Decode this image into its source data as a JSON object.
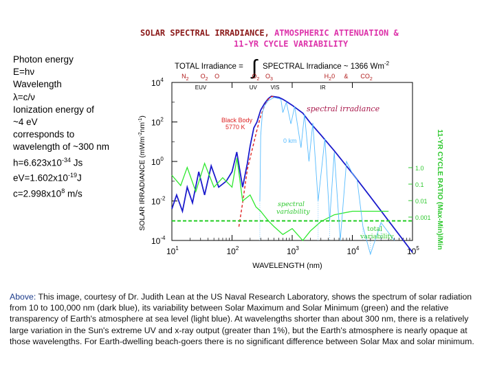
{
  "notes": {
    "photon_energy": "Photon energy",
    "energy_eq": "E=hν",
    "wavelength": "Wavelength",
    "lambda_eq": "λ=c/ν",
    "ionization_1": "Ionization energy of",
    "ionization_2": "~4 eV",
    "corresponds_1": "corresponds to",
    "corresponds_2": "wavelength of ~300 nm",
    "h_const": "h=6.623x10",
    "h_exp": "-34",
    "h_unit": " Js",
    "ev_const": "eV=1.602x10",
    "ev_exp": "-19",
    "ev_unit": "J",
    "c_const": "c=2.998x10",
    "c_exp": "8",
    "c_unit": " m/s"
  },
  "caption": {
    "lead": "Above:",
    "text": " This image, courtesy of Dr. Judith Lean at the US Naval Research Laboratory, shows the spectrum of solar radiation from 10 to 100,000 nm (dark blue), its variability between Solar Maximum and Solar Minimum (green) and the relative transparency of Earth's atmosphere at sea level (light blue). At wavelengths shorter than about 300 nm, there is a relatively large variation in the Sun's extreme UV and x-ray output (greater than 1%), but the Earth's atmosphere is nearly opaque at those wavelengths. For Earth-dwelling beach-goers there is no significant difference between Solar Max and solar minimum."
  },
  "chart_data": {
    "type": "line",
    "title_part1": "SOLAR SPECTRAL IRRADIANCE, ",
    "title_part2": "ATMOSPHERIC ATTENUATION &",
    "title_line2": "11-YR CYCLE VARIABILITY",
    "formula_left": "TOTAL Irradiance =",
    "integral": "∫",
    "formula_right": "SPECTRAL Irradiance ~ 1366 Wm",
    "formula_exp": "-2",
    "xlabel": "WAVELENGTH (nm)",
    "ylabel": "SOLAR IRRADIANCE (mWm",
    "ylabel_exp1": "-2",
    "ylabel_mid": "nm",
    "ylabel_exp2": "-1",
    "ylabel_end": ")",
    "y2label": "11-YR CYCLE RATIO (Max-Min)/Min",
    "xscale": "log",
    "yscale": "log",
    "xlim": [
      10,
      100000
    ],
    "ylim": [
      0.0001,
      10000
    ],
    "x_ticks": [
      {
        "value": 10,
        "base": "10",
        "exp": "1"
      },
      {
        "value": 100,
        "base": "10",
        "exp": "2"
      },
      {
        "value": 1000,
        "base": "10",
        "exp": "3"
      },
      {
        "value": 10000,
        "base": "10",
        "exp": "4"
      },
      {
        "value": 100000,
        "base": "10",
        "exp": "5"
      }
    ],
    "y_ticks": [
      {
        "value": 0.0001,
        "base": "10",
        "exp": "-4"
      },
      {
        "value": 0.01,
        "base": "10",
        "exp": "-2"
      },
      {
        "value": 1,
        "base": "10",
        "exp": "0"
      },
      {
        "value": 100,
        "base": "10",
        "exp": "2"
      },
      {
        "value": 10000,
        "base": "10",
        "exp": "4"
      }
    ],
    "y2_ticks": [
      {
        "label": "1.0",
        "y": 1
      },
      {
        "label": "0.1",
        "y": 0.1
      },
      {
        "label": "0.01",
        "y": 0.01
      },
      {
        "label": "0.001",
        "y": 0.001
      }
    ],
    "gases": [
      {
        "label": "N",
        "sub": "2",
        "x": 17
      },
      {
        "label": "O",
        "sub": "2",
        "x": 35
      },
      {
        "label": "O",
        "sub": "",
        "x": 60
      },
      {
        "label": "O",
        "sub": "2",
        "x": 250
      },
      {
        "label": "O",
        "sub": "3",
        "x": 420
      }
    ],
    "gases_ir": [
      {
        "label": "H",
        "sub": "2",
        "post": "0",
        "x": 4000
      },
      {
        "label": "&",
        "sub": "",
        "post": "",
        "x": 8500
      },
      {
        "label": "CO",
        "sub": "2",
        "post": "",
        "x": 16000
      }
    ],
    "bands": [
      {
        "label": "EUV",
        "x": 30
      },
      {
        "label": "UV",
        "x": 240
      },
      {
        "label": "VIS",
        "x": 540
      },
      {
        "label": "IR",
        "x": 3600
      }
    ],
    "annotations": {
      "spectral_irradiance": "spectral irradiance",
      "black_body": "Black Body",
      "black_body_temp": "5770 K",
      "zero_km": "0 km",
      "spectral_variability_1": "spectral",
      "spectral_variability_2": "variability",
      "total_variability_1": "total",
      "total_variability_2": "variability"
    },
    "series": [
      {
        "name": "spectral irradiance",
        "color": "#1a1acc",
        "x": [
          10,
          12,
          15,
          18,
          22,
          28,
          35,
          45,
          60,
          80,
          100,
          120,
          150,
          180,
          200,
          230,
          260,
          300,
          350,
          400,
          450,
          500,
          600,
          700,
          800,
          1000,
          1500,
          2000,
          3000,
          5000,
          10000,
          20000,
          50000,
          100000
        ],
        "y": [
          0.004,
          0.02,
          0.003,
          0.05,
          0.008,
          0.3,
          0.02,
          0.6,
          0.05,
          0.1,
          0.3,
          3,
          0.05,
          0.8,
          6,
          50,
          100,
          400,
          900,
          1500,
          2000,
          1900,
          1750,
          1400,
          1100,
          700,
          280,
          90,
          22,
          3.5,
          0.25,
          0.016,
          0.0004,
          2.5e-05
        ]
      },
      {
        "name": "black body 5770 K",
        "color": "#dd2222",
        "x": [
          130,
          150,
          180,
          220,
          260,
          300,
          350,
          400,
          450,
          500
        ],
        "y": [
          0.0005,
          0.008,
          0.4,
          5,
          40,
          200,
          700,
          1400,
          1900,
          2000
        ]
      },
      {
        "name": "spectral variability",
        "color": "#2ee82e",
        "x": [
          10,
          14,
          18,
          25,
          35,
          50,
          70,
          100,
          121,
          150,
          200,
          250,
          300,
          400,
          500,
          700,
          1000,
          1500,
          2000,
          3000,
          5000,
          10000,
          20000,
          40000
        ],
        "y": [
          0.2,
          0.06,
          0.5,
          0.03,
          0.8,
          0.05,
          0.15,
          0.05,
          1.5,
          0.01,
          0.02,
          0.005,
          0.003,
          0.001,
          0.0005,
          0.0002,
          0.0004,
          0.0001,
          0.0003,
          0.0009,
          0.002,
          0.003,
          0.003,
          0.003
        ]
      },
      {
        "name": "total variability",
        "color": "#22cc22",
        "x": [
          10,
          100000
        ],
        "y": [
          0.00098,
          0.00098
        ]
      },
      {
        "name": "0 km atmospheric transmission",
        "color": "#55bbff",
        "x": [
          290,
          300,
          320,
          350,
          400,
          500,
          650,
          700,
          800,
          950,
          1100,
          1400,
          1600,
          1900,
          2200,
          2700,
          3500,
          4200,
          5000,
          6300,
          8000,
          10000,
          12000,
          15000,
          20000,
          30000,
          50000
        ],
        "y": [
          0.01,
          20,
          300,
          700,
          1200,
          1750,
          1400,
          300,
          1000,
          80,
          600,
          5,
          250,
          1,
          90,
          0.01,
          15,
          0.001,
          3,
          0.0001,
          1,
          0.25,
          0.12,
          0.0005,
          2e-05,
          0.0008,
          0.0001
        ]
      }
    ]
  }
}
